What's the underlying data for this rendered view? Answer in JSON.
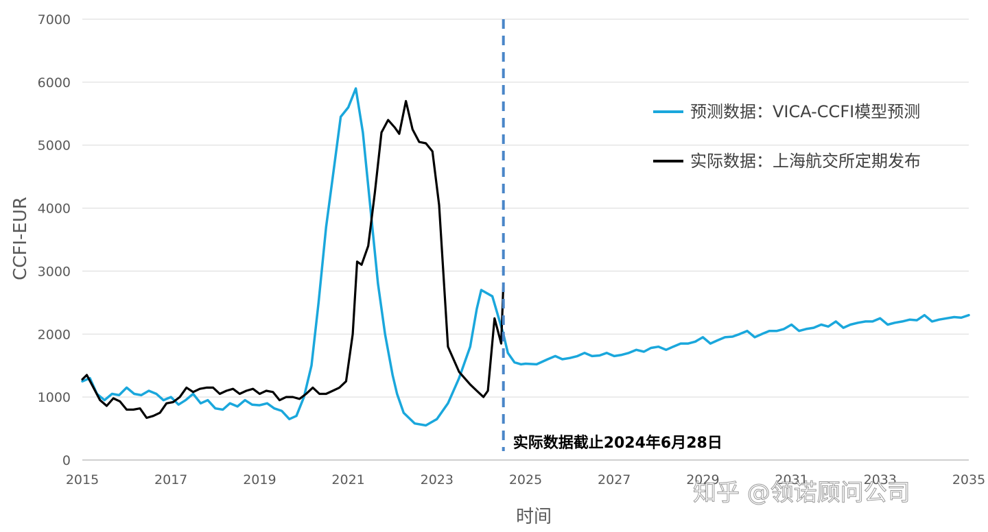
{
  "watermark": "知乎 @领诺顾问公司",
  "colors": {
    "forecast": "#1aa7dc",
    "actual": "#000000",
    "cutoff": "#4a86c8",
    "grid": "#d9d9d9",
    "axis": "#bfbfbf"
  },
  "chart_data": {
    "type": "line",
    "title": "",
    "xlabel": "时间",
    "ylabel": "CCFI-EUR",
    "xlim": [
      2015,
      2035
    ],
    "ylim": [
      0,
      7000
    ],
    "grid": "horizontal",
    "legend_position": "top-right",
    "x_ticks": [
      "2015",
      "2017",
      "2019",
      "2021",
      "2023",
      "2025",
      "2027",
      "2029",
      "2031",
      "2033",
      "2035"
    ],
    "y_ticks": [
      "0",
      "1000",
      "2000",
      "3000",
      "4000",
      "5000",
      "6000",
      "7000"
    ],
    "annotation": {
      "x": 2024.5,
      "text": "实际数据截止2024年6月28日"
    },
    "series": [
      {
        "name": "预测数据：VICA-CCFI模型预测",
        "x": [
          2015.0,
          2015.17,
          2015.33,
          2015.5,
          2015.67,
          2015.83,
          2016.0,
          2016.17,
          2016.33,
          2016.5,
          2016.67,
          2016.83,
          2017.0,
          2017.17,
          2017.33,
          2017.5,
          2017.67,
          2017.83,
          2018.0,
          2018.17,
          2018.33,
          2018.5,
          2018.67,
          2018.83,
          2019.0,
          2019.17,
          2019.33,
          2019.5,
          2019.67,
          2019.83,
          2020.0,
          2020.17,
          2020.33,
          2020.5,
          2020.67,
          2020.83,
          2021.0,
          2021.17,
          2021.33,
          2021.5,
          2021.67,
          2021.83,
          2022.0,
          2022.1,
          2022.25,
          2022.5,
          2022.75,
          2023.0,
          2023.25,
          2023.5,
          2023.75,
          2023.9,
          2024.0,
          2024.25,
          2024.5,
          2024.6,
          2024.75,
          2024.9,
          2025.0,
          2025.25,
          2025.5,
          2025.67,
          2025.83,
          2026.0,
          2026.17,
          2026.33,
          2026.5,
          2026.67,
          2026.83,
          2027.0,
          2027.17,
          2027.33,
          2027.5,
          2027.67,
          2027.83,
          2028.0,
          2028.17,
          2028.33,
          2028.5,
          2028.67,
          2028.83,
          2029.0,
          2029.17,
          2029.33,
          2029.5,
          2029.67,
          2029.83,
          2030.0,
          2030.17,
          2030.33,
          2030.5,
          2030.67,
          2030.83,
          2031.0,
          2031.17,
          2031.33,
          2031.5,
          2031.67,
          2031.83,
          2032.0,
          2032.17,
          2032.33,
          2032.5,
          2032.67,
          2032.83,
          2033.0,
          2033.17,
          2033.33,
          2033.5,
          2033.67,
          2033.83,
          2034.0,
          2034.17,
          2034.33,
          2034.5,
          2034.67,
          2034.83,
          2035.0
        ],
        "y": [
          1250,
          1300,
          1050,
          950,
          1050,
          1030,
          1150,
          1050,
          1030,
          1100,
          1050,
          950,
          1000,
          880,
          950,
          1050,
          900,
          950,
          820,
          800,
          900,
          850,
          950,
          880,
          870,
          900,
          820,
          780,
          650,
          700,
          1000,
          1500,
          2500,
          3700,
          4600,
          5450,
          5600,
          5900,
          5200,
          4000,
          2800,
          2000,
          1350,
          1050,
          750,
          580,
          550,
          650,
          900,
          1300,
          1800,
          2400,
          2700,
          2600,
          2000,
          1700,
          1550,
          1520,
          1530,
          1520,
          1600,
          1650,
          1600,
          1620,
          1650,
          1700,
          1650,
          1660,
          1700,
          1650,
          1670,
          1700,
          1750,
          1720,
          1780,
          1800,
          1750,
          1800,
          1850,
          1850,
          1880,
          1950,
          1850,
          1900,
          1950,
          1960,
          2000,
          2050,
          1950,
          2000,
          2050,
          2050,
          2080,
          2150,
          2050,
          2080,
          2100,
          2150,
          2120,
          2200,
          2100,
          2150,
          2180,
          2200,
          2200,
          2250,
          2150,
          2180,
          2200,
          2230,
          2220,
          2300,
          2200,
          2230,
          2250,
          2270,
          2260,
          2300
        ]
      },
      {
        "name": "实际数据：上海航交所定期发布",
        "x": [
          2015.0,
          2015.1,
          2015.25,
          2015.4,
          2015.55,
          2015.7,
          2015.85,
          2016.0,
          2016.15,
          2016.3,
          2016.45,
          2016.6,
          2016.75,
          2016.9,
          2017.05,
          2017.2,
          2017.35,
          2017.5,
          2017.65,
          2017.8,
          2017.95,
          2018.1,
          2018.25,
          2018.4,
          2018.55,
          2018.7,
          2018.85,
          2019.0,
          2019.15,
          2019.3,
          2019.45,
          2019.6,
          2019.75,
          2019.9,
          2020.05,
          2020.2,
          2020.35,
          2020.5,
          2020.65,
          2020.8,
          2020.95,
          2021.1,
          2021.2,
          2021.3,
          2021.45,
          2021.6,
          2021.75,
          2021.9,
          2022.05,
          2022.15,
          2022.3,
          2022.45,
          2022.6,
          2022.75,
          2022.9,
          2023.05,
          2023.25,
          2023.5,
          2023.75,
          2023.9,
          2024.05,
          2024.15,
          2024.3,
          2024.45,
          2024.5
        ],
        "y": [
          1280,
          1350,
          1150,
          950,
          860,
          980,
          930,
          800,
          800,
          820,
          670,
          700,
          750,
          900,
          920,
          1000,
          1150,
          1080,
          1130,
          1150,
          1150,
          1050,
          1100,
          1130,
          1050,
          1100,
          1130,
          1050,
          1100,
          1080,
          950,
          1000,
          1000,
          970,
          1050,
          1150,
          1050,
          1050,
          1100,
          1150,
          1250,
          2000,
          3150,
          3100,
          3400,
          4250,
          5200,
          5400,
          5280,
          5180,
          5700,
          5250,
          5050,
          5030,
          4900,
          4050,
          1800,
          1400,
          1200,
          1100,
          1000,
          1100,
          2250,
          1850,
          2800
        ]
      }
    ]
  }
}
